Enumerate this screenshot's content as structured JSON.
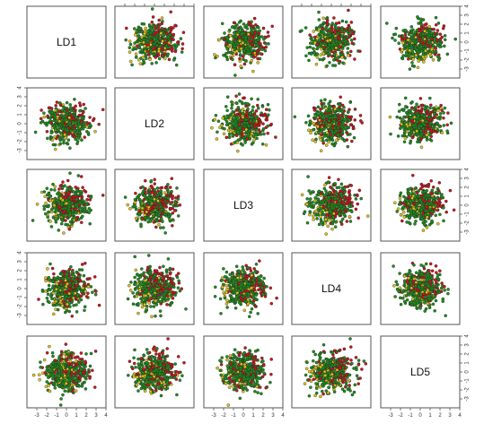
{
  "chart_data": {
    "type": "scatter",
    "title": "",
    "variables": [
      "LD1",
      "LD2",
      "LD3",
      "LD4",
      "LD5"
    ],
    "axis_range": [
      -4,
      4
    ],
    "tick_labels": [
      "-3",
      "-2",
      "-1",
      "0",
      "1",
      "2",
      "3",
      "4"
    ],
    "tick_values": [
      -3,
      -2,
      -1,
      0,
      1,
      2,
      3,
      4
    ],
    "grid": false,
    "legend": "none",
    "groups": [
      {
        "color": "#1e8c1e",
        "share": 0.62
      },
      {
        "color": "#c8161e",
        "share": 0.25
      },
      {
        "color": "#e0c21c",
        "share": 0.13
      }
    ],
    "points_per_panel": 450
  }
}
